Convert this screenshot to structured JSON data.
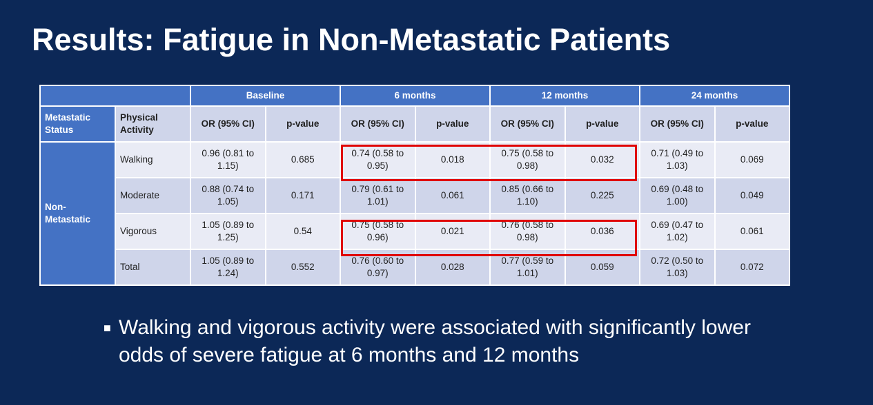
{
  "title": "Results: Fatigue in Non-Metastatic Patients",
  "table": {
    "periods": [
      "Baseline",
      "6 months",
      "12 months",
      "24 months"
    ],
    "col_headers": {
      "status": "Metastatic Status",
      "activity": "Physical Activity",
      "or": "OR (95% CI)",
      "p": "p-value"
    },
    "group": "Non-Metastatic",
    "rows": [
      {
        "activity": "Walking",
        "cells": [
          "0.96 (0.81 to 1.15)",
          "0.685",
          "0.74 (0.58 to 0.95)",
          "0.018",
          "0.75 (0.58 to 0.98)",
          "0.032",
          "0.71 (0.49 to 1.03)",
          "0.069"
        ]
      },
      {
        "activity": "Moderate",
        "cells": [
          "0.88 (0.74 to 1.05)",
          "0.171",
          "0.79 (0.61 to 1.01)",
          "0.061",
          "0.85 (0.66 to 1.10)",
          "0.225",
          "0.69 (0.48 to 1.00)",
          "0.049"
        ]
      },
      {
        "activity": "Vigorous",
        "cells": [
          "1.05 (0.89 to 1.25)",
          "0.54",
          "0.75 (0.58 to 0.96)",
          "0.021",
          "0.76 (0.58 to 0.98)",
          "0.036",
          "0.69 (0.47 to 1.02)",
          "0.061"
        ]
      },
      {
        "activity": "Total",
        "cells": [
          "1.05 (0.89 to 1.24)",
          "0.552",
          "0.76 (0.60 to 0.97)",
          "0.028",
          "0.77 (0.59 to 1.01)",
          "0.059",
          "0.72 (0.50 to 1.03)",
          "0.072"
        ]
      }
    ]
  },
  "highlight_color": "#e00000",
  "bullet": "Walking and vigorous activity were associated with significantly lower odds of severe fatigue at 6 months and 12 months"
}
